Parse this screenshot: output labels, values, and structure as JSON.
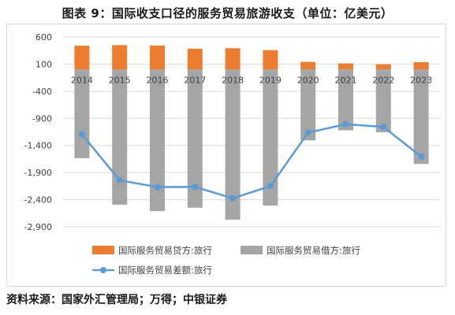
{
  "title": "图表 9：国际收支口径的服务贸易旅游收支（单位：亿美元）",
  "source": "资料来源：国家外汇管理局；万得；中银证券",
  "chart_data": {
    "type": "bar",
    "categories": [
      "2014",
      "2015",
      "2016",
      "2017",
      "2018",
      "2019",
      "2020",
      "2021",
      "2022",
      "2023"
    ],
    "series": [
      {
        "name": "国际服务贸易贷方:旅行",
        "kind": "bar",
        "color": "#ED7D31",
        "values": [
          440,
          450,
          444,
          384,
          394,
          358,
          142,
          113,
          98,
          136
        ]
      },
      {
        "name": "国际服务贸易借方:旅行",
        "kind": "bar",
        "color": "#A5A5A5",
        "values": [
          -1634,
          -2492,
          -2611,
          -2548,
          -2768,
          -2508,
          -1306,
          -1121,
          -1156,
          -1741
        ]
      },
      {
        "name": "国际服务贸易差额:旅行",
        "kind": "line",
        "color": "#5B9BD5",
        "values": [
          -1194,
          -2042,
          -2167,
          -2164,
          -2374,
          -2150,
          -1164,
          -1008,
          -1058,
          -1605
        ]
      }
    ],
    "yticks": [
      "600",
      "100",
      "-400",
      "-900",
      "-1,400",
      "-1,900",
      "-2,400",
      "-2,900"
    ],
    "ytick_values": [
      600,
      100,
      -400,
      -900,
      -1400,
      -1900,
      -2400,
      -2900
    ],
    "ylim": [
      -2900,
      600
    ],
    "grid": true,
    "legend_position": "bottom"
  }
}
